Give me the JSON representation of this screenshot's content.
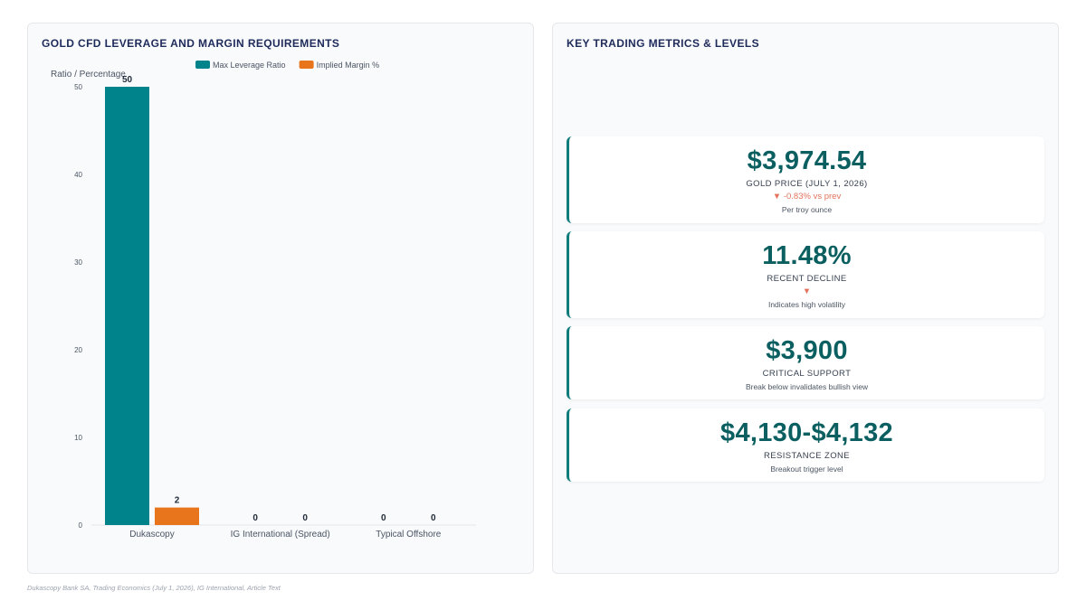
{
  "chart_title": "GOLD CFD LEVERAGE AND MARGIN REQUIREMENTS",
  "metrics_title": "KEY TRADING METRICS & LEVELS",
  "chart_data": {
    "type": "bar",
    "title": "GOLD CFD LEVERAGE AND MARGIN REQUIREMENTS",
    "ylabel": "Ratio / Percentage",
    "xlabel": "",
    "categories": [
      "Dukascopy",
      "IG International (Spread)",
      "Typical Offshore"
    ],
    "series": [
      {
        "name": "Max Leverage Ratio",
        "values": [
          50,
          0,
          0
        ],
        "color": "#00838a"
      },
      {
        "name": "Implied Margin %",
        "values": [
          2,
          0,
          0
        ],
        "color": "#e8741c"
      }
    ],
    "ylim": [
      0,
      50
    ],
    "yticks": [
      0,
      10,
      20,
      30,
      40,
      50
    ],
    "legend": "top",
    "grid": false
  },
  "metrics": [
    {
      "value": "$3,974.54",
      "label": "GOLD PRICE (JULY 1, 2026)",
      "change": "▼ -0.83% vs prev",
      "note": "Per troy ounce"
    },
    {
      "value": "11.48%",
      "label": "RECENT DECLINE",
      "change": "▼",
      "note": "Indicates high volatility"
    },
    {
      "value": "$3,900",
      "label": "CRITICAL SUPPORT",
      "note": "Break below invalidates bullish view"
    },
    {
      "value": "$4,130-$4,132",
      "label": "RESISTANCE ZONE",
      "note": "Breakout trigger level"
    }
  ],
  "source": "Dukascopy Bank SA, Trading Economics (July 1, 2026), IG International, Article Text"
}
